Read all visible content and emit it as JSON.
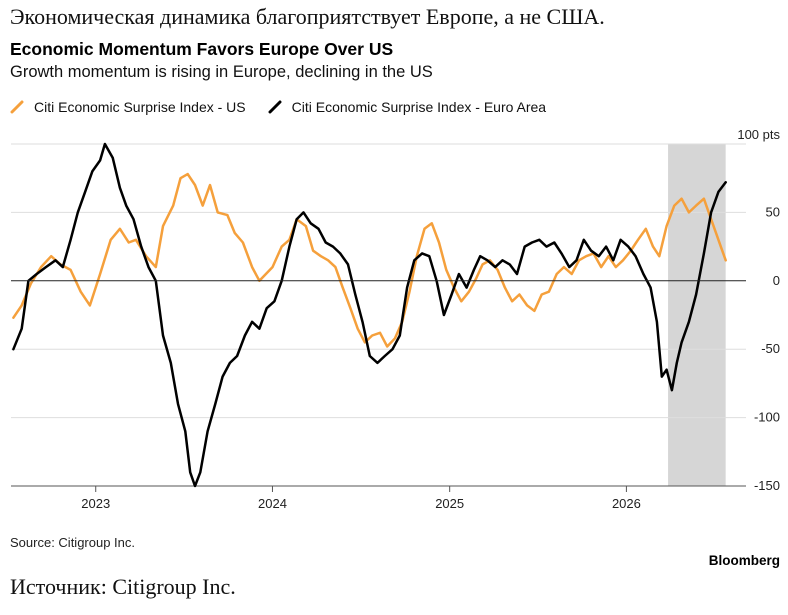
{
  "header": {
    "ru_title": "Экономическая динамика благоприятствует Европе, а не США.",
    "title": "Economic Momentum Favors Europe Over US",
    "subtitle": "Growth momentum is rising in Europe, declining in the US"
  },
  "footer": {
    "source": "Source: Citigroup Inc.",
    "brand": "Bloomberg",
    "ru_source": "Источник: Citigroup Inc."
  },
  "chart_data": {
    "type": "line",
    "x_axis": {
      "type": "date",
      "tick_labels": [
        "2023",
        "2024",
        "2025",
        "2026"
      ],
      "tick_dates": [
        "2023-01-01",
        "2024-01-01",
        "2025-01-01",
        "2026-01-01"
      ],
      "range": [
        "2022-07-10",
        "2026-09-05"
      ]
    },
    "y_axis": {
      "range": [
        -150,
        100
      ],
      "ticks": [
        100,
        50,
        0,
        -50,
        -100,
        -150
      ],
      "tick_labels": [
        "100 pts",
        "50",
        "0",
        "-50",
        "-100",
        "-150"
      ],
      "position": "right",
      "gridlines": true,
      "zero_line": true
    },
    "legend": {
      "placement": "top-left"
    },
    "shaded_region": {
      "from": "2026-03-28",
      "to": "2026-07-25",
      "color": "#d6d6d6"
    },
    "series": [
      {
        "name": "Citi Economic Surprise Index - US",
        "color": "#f5a03c",
        "points": [
          [
            "2022-07-15",
            -27
          ],
          [
            "2022-08-01",
            -18
          ],
          [
            "2022-08-20",
            -2
          ],
          [
            "2022-09-10",
            10
          ],
          [
            "2022-10-01",
            18
          ],
          [
            "2022-10-20",
            12
          ],
          [
            "2022-11-10",
            8
          ],
          [
            "2022-12-01",
            -8
          ],
          [
            "2022-12-20",
            -18
          ],
          [
            "2023-01-10",
            5
          ],
          [
            "2023-02-01",
            30
          ],
          [
            "2023-02-20",
            38
          ],
          [
            "2023-03-10",
            28
          ],
          [
            "2023-03-25",
            30
          ],
          [
            "2023-04-15",
            18
          ],
          [
            "2023-05-05",
            10
          ],
          [
            "2023-05-20",
            40
          ],
          [
            "2023-06-10",
            55
          ],
          [
            "2023-06-25",
            75
          ],
          [
            "2023-07-10",
            78
          ],
          [
            "2023-07-25",
            70
          ],
          [
            "2023-08-10",
            55
          ],
          [
            "2023-08-25",
            70
          ],
          [
            "2023-09-10",
            50
          ],
          [
            "2023-09-30",
            48
          ],
          [
            "2023-10-15",
            35
          ],
          [
            "2023-11-01",
            28
          ],
          [
            "2023-11-20",
            10
          ],
          [
            "2023-12-05",
            0
          ],
          [
            "2024-01-01",
            10
          ],
          [
            "2024-01-20",
            25
          ],
          [
            "2024-02-05",
            30
          ],
          [
            "2024-02-20",
            45
          ],
          [
            "2024-03-10",
            40
          ],
          [
            "2024-03-25",
            22
          ],
          [
            "2024-04-10",
            18
          ],
          [
            "2024-04-25",
            15
          ],
          [
            "2024-05-10",
            10
          ],
          [
            "2024-05-25",
            -5
          ],
          [
            "2024-06-10",
            -20
          ],
          [
            "2024-06-25",
            -35
          ],
          [
            "2024-07-10",
            -45
          ],
          [
            "2024-07-25",
            -40
          ],
          [
            "2024-08-10",
            -38
          ],
          [
            "2024-08-25",
            -48
          ],
          [
            "2024-09-10",
            -42
          ],
          [
            "2024-09-25",
            -30
          ],
          [
            "2024-10-10",
            -8
          ],
          [
            "2024-10-25",
            18
          ],
          [
            "2024-11-10",
            38
          ],
          [
            "2024-11-25",
            42
          ],
          [
            "2024-12-10",
            28
          ],
          [
            "2024-12-25",
            8
          ],
          [
            "2025-01-10",
            -5
          ],
          [
            "2025-01-25",
            -15
          ],
          [
            "2025-02-10",
            -8
          ],
          [
            "2025-02-25",
            2
          ],
          [
            "2025-03-10",
            12
          ],
          [
            "2025-03-25",
            15
          ],
          [
            "2025-04-10",
            8
          ],
          [
            "2025-04-25",
            -5
          ],
          [
            "2025-05-10",
            -15
          ],
          [
            "2025-05-25",
            -10
          ],
          [
            "2025-06-10",
            -18
          ],
          [
            "2025-06-25",
            -22
          ],
          [
            "2025-07-10",
            -10
          ],
          [
            "2025-07-25",
            -8
          ],
          [
            "2025-08-10",
            5
          ],
          [
            "2025-08-25",
            10
          ],
          [
            "2025-09-10",
            5
          ],
          [
            "2025-09-25",
            15
          ],
          [
            "2025-10-10",
            18
          ],
          [
            "2025-10-25",
            20
          ],
          [
            "2025-11-10",
            10
          ],
          [
            "2025-11-25",
            18
          ],
          [
            "2025-12-10",
            10
          ],
          [
            "2025-12-25",
            15
          ],
          [
            "2026-01-10",
            22
          ],
          [
            "2026-01-25",
            30
          ],
          [
            "2026-02-10",
            38
          ],
          [
            "2026-02-25",
            25
          ],
          [
            "2026-03-10",
            18
          ],
          [
            "2026-03-25",
            40
          ],
          [
            "2026-04-10",
            55
          ],
          [
            "2026-04-25",
            60
          ],
          [
            "2026-05-10",
            50
          ],
          [
            "2026-05-25",
            55
          ],
          [
            "2026-06-10",
            60
          ],
          [
            "2026-06-25",
            45
          ],
          [
            "2026-07-05",
            35
          ],
          [
            "2026-07-15",
            25
          ],
          [
            "2026-07-25",
            15
          ]
        ]
      },
      {
        "name": "Citi Economic Surprise Index - Euro Area",
        "color": "#000000",
        "points": [
          [
            "2022-07-15",
            -50
          ],
          [
            "2022-08-01",
            -35
          ],
          [
            "2022-08-15",
            0
          ],
          [
            "2022-09-01",
            5
          ],
          [
            "2022-09-20",
            10
          ],
          [
            "2022-10-10",
            15
          ],
          [
            "2022-10-25",
            10
          ],
          [
            "2022-11-10",
            30
          ],
          [
            "2022-11-25",
            50
          ],
          [
            "2022-12-10",
            65
          ],
          [
            "2022-12-25",
            80
          ],
          [
            "2023-01-10",
            88
          ],
          [
            "2023-01-20",
            100
          ],
          [
            "2023-02-05",
            90
          ],
          [
            "2023-02-20",
            68
          ],
          [
            "2023-03-05",
            55
          ],
          [
            "2023-03-20",
            45
          ],
          [
            "2023-04-05",
            25
          ],
          [
            "2023-04-20",
            10
          ],
          [
            "2023-05-05",
            0
          ],
          [
            "2023-05-20",
            -40
          ],
          [
            "2023-06-05",
            -60
          ],
          [
            "2023-06-20",
            -90
          ],
          [
            "2023-07-05",
            -110
          ],
          [
            "2023-07-15",
            -140
          ],
          [
            "2023-07-25",
            -150
          ],
          [
            "2023-08-05",
            -140
          ],
          [
            "2023-08-20",
            -110
          ],
          [
            "2023-09-05",
            -90
          ],
          [
            "2023-09-20",
            -70
          ],
          [
            "2023-10-05",
            -60
          ],
          [
            "2023-10-20",
            -55
          ],
          [
            "2023-11-05",
            -40
          ],
          [
            "2023-11-20",
            -30
          ],
          [
            "2023-12-05",
            -35
          ],
          [
            "2023-12-20",
            -20
          ],
          [
            "2024-01-05",
            -15
          ],
          [
            "2024-01-20",
            0
          ],
          [
            "2024-02-05",
            25
          ],
          [
            "2024-02-20",
            45
          ],
          [
            "2024-03-05",
            50
          ],
          [
            "2024-03-20",
            42
          ],
          [
            "2024-04-05",
            38
          ],
          [
            "2024-04-20",
            28
          ],
          [
            "2024-05-05",
            25
          ],
          [
            "2024-05-20",
            20
          ],
          [
            "2024-06-05",
            12
          ],
          [
            "2024-06-20",
            -10
          ],
          [
            "2024-07-05",
            -30
          ],
          [
            "2024-07-20",
            -55
          ],
          [
            "2024-08-05",
            -60
          ],
          [
            "2024-08-20",
            -55
          ],
          [
            "2024-09-05",
            -50
          ],
          [
            "2024-09-20",
            -40
          ],
          [
            "2024-10-05",
            -5
          ],
          [
            "2024-10-20",
            15
          ],
          [
            "2024-11-05",
            20
          ],
          [
            "2024-11-20",
            18
          ],
          [
            "2024-12-05",
            0
          ],
          [
            "2024-12-20",
            -25
          ],
          [
            "2025-01-05",
            -10
          ],
          [
            "2025-01-20",
            5
          ],
          [
            "2025-02-05",
            -5
          ],
          [
            "2025-02-20",
            8
          ],
          [
            "2025-03-05",
            18
          ],
          [
            "2025-03-20",
            15
          ],
          [
            "2025-04-05",
            10
          ],
          [
            "2025-04-20",
            15
          ],
          [
            "2025-05-05",
            12
          ],
          [
            "2025-05-20",
            5
          ],
          [
            "2025-06-05",
            25
          ],
          [
            "2025-06-20",
            28
          ],
          [
            "2025-07-05",
            30
          ],
          [
            "2025-07-20",
            25
          ],
          [
            "2025-08-05",
            28
          ],
          [
            "2025-08-20",
            20
          ],
          [
            "2025-09-05",
            10
          ],
          [
            "2025-09-20",
            15
          ],
          [
            "2025-10-05",
            30
          ],
          [
            "2025-10-20",
            22
          ],
          [
            "2025-11-05",
            18
          ],
          [
            "2025-11-20",
            25
          ],
          [
            "2025-12-05",
            15
          ],
          [
            "2025-12-20",
            30
          ],
          [
            "2026-01-05",
            25
          ],
          [
            "2026-01-20",
            18
          ],
          [
            "2026-02-05",
            5
          ],
          [
            "2026-02-20",
            -5
          ],
          [
            "2026-03-05",
            -30
          ],
          [
            "2026-03-15",
            -70
          ],
          [
            "2026-03-25",
            -65
          ],
          [
            "2026-04-05",
            -80
          ],
          [
            "2026-04-15",
            -60
          ],
          [
            "2026-04-25",
            -45
          ],
          [
            "2026-05-10",
            -30
          ],
          [
            "2026-05-25",
            -10
          ],
          [
            "2026-06-10",
            20
          ],
          [
            "2026-06-25",
            50
          ],
          [
            "2026-07-10",
            65
          ],
          [
            "2026-07-25",
            72
          ]
        ]
      }
    ]
  }
}
